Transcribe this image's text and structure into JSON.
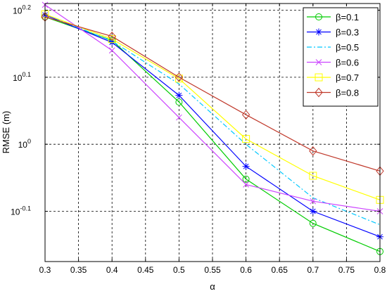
{
  "chart_data": {
    "type": "line",
    "title": "",
    "xlabel": "α",
    "ylabel": "RMSE (m)",
    "y_scale": "log",
    "xlim": [
      0.3,
      0.8
    ],
    "ylim": [
      -0.175,
      0.21
    ],
    "grid": true,
    "grid_style": "dashed",
    "legend_position": "top-right",
    "x_ticks": [
      "0.3",
      "0.35",
      "0.4",
      "0.45",
      "0.5",
      "0.55",
      "0.6",
      "0.65",
      "0.7",
      "0.75",
      "0.8"
    ],
    "y_ticks": [
      {
        "value": -0.1,
        "base": "10",
        "exp": "-0.1"
      },
      {
        "value": 0,
        "base": "10",
        "exp": "0"
      },
      {
        "value": 0.1,
        "base": "10",
        "exp": "0.1"
      },
      {
        "value": 0.2,
        "base": "10",
        "exp": "0.2"
      }
    ],
    "series": [
      {
        "name": "β=0.1",
        "color": "#00cc00",
        "marker": "circle",
        "line": "solid",
        "x": [
          0.3,
          0.4,
          0.5,
          0.6,
          0.7,
          0.8
        ],
        "y": [
          0.19,
          0.155,
          0.063,
          -0.052,
          -0.118,
          -0.16
        ]
      },
      {
        "name": "β=0.3",
        "color": "#0000ff",
        "marker": "asterisk",
        "line": "solid",
        "x": [
          0.3,
          0.4,
          0.5,
          0.6,
          0.7,
          0.8
        ],
        "y": [
          0.193,
          0.152,
          0.073,
          -0.033,
          -0.1,
          -0.138
        ]
      },
      {
        "name": "β=0.5",
        "color": "#00c8ff",
        "marker": "none",
        "line": "dashdot",
        "x": [
          0.3,
          0.4,
          0.5,
          0.6,
          0.7,
          0.8
        ],
        "y": [
          0.194,
          0.154,
          0.09,
          0.0,
          -0.08,
          -0.12
        ]
      },
      {
        "name": "β=0.6",
        "color": "#cc44ff",
        "marker": "x",
        "line": "solid",
        "x": [
          0.3,
          0.4,
          0.5,
          0.6,
          0.7,
          0.8
        ],
        "y": [
          0.208,
          0.14,
          0.04,
          -0.06,
          -0.085,
          -0.1
        ]
      },
      {
        "name": "β=0.7",
        "color": "#ffff00",
        "marker": "square",
        "line": "solid",
        "x": [
          0.3,
          0.4,
          0.5,
          0.6,
          0.7,
          0.8
        ],
        "y": [
          0.194,
          0.157,
          0.098,
          0.008,
          -0.047,
          -0.083
        ]
      },
      {
        "name": "β=0.8",
        "color": "#c0392b",
        "marker": "diamond",
        "line": "solid",
        "x": [
          0.3,
          0.4,
          0.5,
          0.6,
          0.7,
          0.8
        ],
        "y": [
          0.19,
          0.161,
          0.1,
          0.044,
          -0.01,
          -0.04
        ]
      }
    ]
  }
}
